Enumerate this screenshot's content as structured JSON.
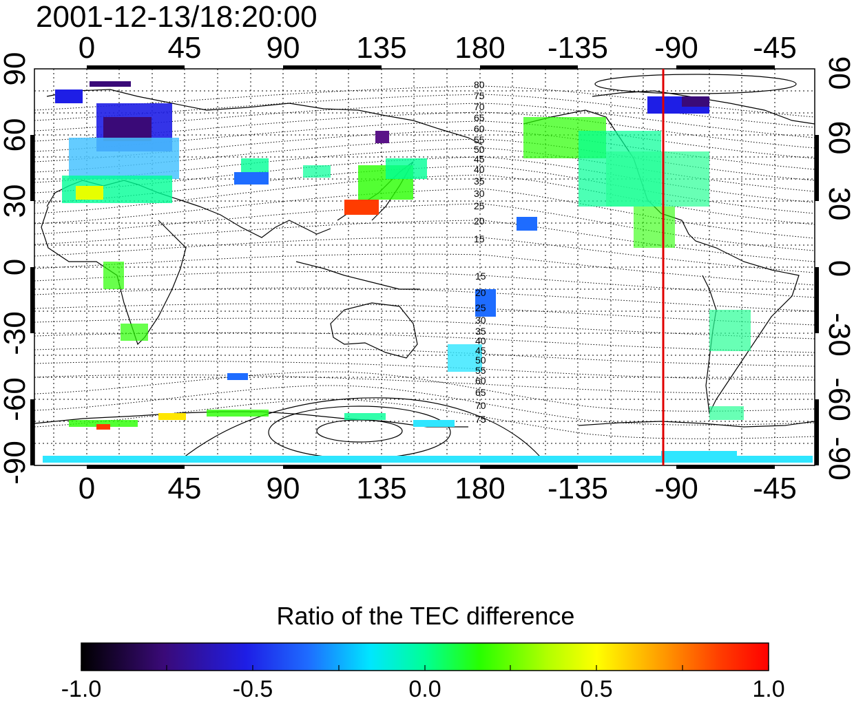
{
  "map": {
    "title": "2001-12-13/18:20:00",
    "lon_tick_labels": [
      "0",
      "45",
      "90",
      "135",
      "180",
      "-135",
      "-90",
      "-45"
    ],
    "lat_tick_labels": [
      "90",
      "60",
      "30",
      "0",
      "-30",
      "-60",
      "-90"
    ],
    "contour_labels_north": [
      "80",
      "75",
      "70",
      "65",
      "60",
      "55",
      "50",
      "45",
      "40",
      "35",
      "30",
      "25",
      "20",
      "15"
    ],
    "contour_labels_south": [
      "15",
      "20",
      "25",
      "30",
      "35",
      "40",
      "45",
      "50",
      "55",
      "60",
      "65",
      "70",
      "75"
    ],
    "highlight_longitude": -90,
    "highlight_color": "#e00000"
  },
  "colorbar": {
    "title": "Ratio of the TEC difference",
    "tick_labels": [
      "-1.0",
      "-0.5",
      "0.0",
      "0.5",
      "1.0"
    ],
    "min": -1.0,
    "max": 1.0,
    "colormap": [
      "#000000",
      "#3a0a78",
      "#1e1ee6",
      "#1e6cff",
      "#00e6ff",
      "#00ff96",
      "#28ff00",
      "#b4ff00",
      "#ffff00",
      "#ff9600",
      "#ff3c00",
      "#ff0000"
    ]
  }
}
